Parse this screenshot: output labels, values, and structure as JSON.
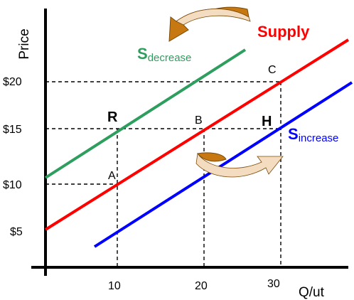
{
  "chart_data": {
    "type": "line",
    "ylabel": "Price",
    "xlabel": "Q/ut",
    "x_ticks": [
      "10",
      "20",
      "30"
    ],
    "y_ticks": [
      "$5",
      "$10",
      "$15",
      "$20"
    ],
    "xlim": [
      0,
      40
    ],
    "ylim": [
      2.5,
      27
    ],
    "grid": false,
    "series": [
      {
        "name": "Supply",
        "color": "#ff0000",
        "points": [
          [
            0,
            5.5
          ],
          [
            40,
            23.5
          ]
        ]
      },
      {
        "name": "S decrease",
        "label_main": "S",
        "label_sub": "decrease",
        "color": "#2e9e5e",
        "points": [
          [
            0,
            11
          ],
          [
            26,
            23
          ]
        ]
      },
      {
        "name": "S increase",
        "label_main": "S",
        "label_sub": "increase",
        "color": "#0000ff",
        "points": [
          [
            7,
            4.5
          ],
          [
            40,
            19.5
          ]
        ]
      }
    ],
    "points": [
      {
        "label": "A",
        "x": 10,
        "y": 10,
        "bold": false
      },
      {
        "label": "B",
        "x": 20,
        "y": 15,
        "bold": false
      },
      {
        "label": "C",
        "x": 30,
        "y": 20,
        "bold": false
      },
      {
        "label": "R",
        "x": 10,
        "y": 15,
        "bold": true
      },
      {
        "label": "H",
        "x": 30,
        "y": 15,
        "bold": true
      }
    ],
    "arrows": [
      {
        "name": "shift-left-arrow",
        "direction": "left",
        "color": "#c87810"
      },
      {
        "name": "shift-right-arrow",
        "direction": "right",
        "color": "#c87810"
      }
    ]
  }
}
